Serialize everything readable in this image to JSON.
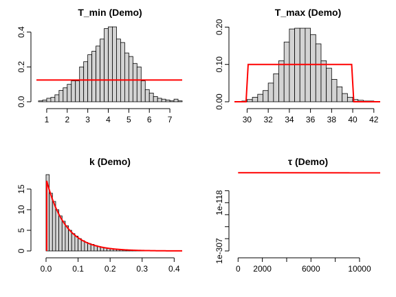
{
  "chart_data": [
    {
      "type": "bar",
      "subtype": "histogram",
      "title": "T_min (Demo)",
      "xlim": [
        0.5,
        7.6
      ],
      "ylim": [
        0,
        0.45
      ],
      "xticks": [
        1,
        2,
        3,
        4,
        5,
        6,
        7
      ],
      "yticks": [
        0.0,
        0.2,
        0.4
      ],
      "xtick_labels": [
        "1",
        "2",
        "3",
        "4",
        "5",
        "6",
        "7"
      ],
      "ytick_labels": [
        "0.0",
        "0.2",
        "0.4"
      ],
      "bin_width": 0.2,
      "bins_start": [
        0.6,
        0.8,
        1.0,
        1.2,
        1.4,
        1.6,
        1.8,
        2.0,
        2.2,
        2.4,
        2.6,
        2.8,
        3.0,
        3.2,
        3.4,
        3.6,
        3.8,
        4.0,
        4.2,
        4.4,
        4.6,
        4.8,
        5.0,
        5.2,
        5.4,
        5.6,
        5.8,
        6.0,
        6.2,
        6.4,
        6.6,
        6.8,
        7.0,
        7.2,
        7.4
      ],
      "density": [
        0.005,
        0.01,
        0.02,
        0.025,
        0.04,
        0.065,
        0.08,
        0.1,
        0.12,
        0.12,
        0.2,
        0.23,
        0.27,
        0.29,
        0.32,
        0.36,
        0.42,
        0.43,
        0.43,
        0.36,
        0.34,
        0.28,
        0.26,
        0.22,
        0.2,
        0.12,
        0.07,
        0.05,
        0.03,
        0.02,
        0.015,
        0.01,
        0.005,
        0.015,
        0.005
      ],
      "curve": {
        "kind": "flat",
        "x": [
          0.5,
          7.6
        ],
        "y": [
          0.125,
          0.125
        ]
      },
      "grid": false,
      "legend": "none"
    },
    {
      "type": "bar",
      "subtype": "histogram",
      "title": "T_max (Demo)",
      "xlim": [
        28.8,
        42.6
      ],
      "ylim": [
        0,
        0.21
      ],
      "xticks": [
        30,
        32,
        34,
        36,
        38,
        40,
        42
      ],
      "yticks": [
        0.0,
        0.1,
        0.2
      ],
      "xtick_labels": [
        "30",
        "32",
        "34",
        "36",
        "38",
        "40",
        "42"
      ],
      "ytick_labels": [
        "0.00",
        "0.10",
        "0.20"
      ],
      "bin_width": 0.5,
      "bins_start": [
        29.5,
        30.0,
        30.5,
        31.0,
        31.5,
        32.0,
        32.5,
        33.0,
        33.5,
        34.0,
        34.5,
        35.0,
        35.5,
        36.0,
        36.5,
        37.0,
        37.5,
        38.0,
        38.5,
        39.0,
        39.5,
        40.0,
        40.5,
        41.0,
        41.5
      ],
      "density": [
        0.002,
        0.006,
        0.012,
        0.02,
        0.03,
        0.05,
        0.075,
        0.11,
        0.16,
        0.195,
        0.197,
        0.197,
        0.197,
        0.18,
        0.155,
        0.11,
        0.09,
        0.06,
        0.04,
        0.022,
        0.012,
        0.006,
        0.004,
        0.002,
        0.002
      ],
      "curve": {
        "kind": "uniform",
        "x": [
          28.8,
          29.9,
          30.1,
          39.9,
          40.1,
          42.6
        ],
        "y": [
          0,
          0,
          0.1,
          0.1,
          0,
          0
        ]
      },
      "grid": false,
      "legend": "none"
    },
    {
      "type": "bar",
      "subtype": "histogram",
      "title": "k (Demo)",
      "xlim": [
        -0.03,
        0.425
      ],
      "ylim": [
        0,
        19
      ],
      "xticks": [
        0.0,
        0.1,
        0.2,
        0.3,
        0.4
      ],
      "yticks": [
        0,
        5,
        10,
        15
      ],
      "xtick_labels": [
        "0.0",
        "0.1",
        "0.2",
        "0.3",
        "0.4"
      ],
      "ytick_labels": [
        "0",
        "5",
        "10",
        "15"
      ],
      "bin_width": 0.01,
      "bins_start": [
        0.0,
        0.01,
        0.02,
        0.03,
        0.04,
        0.05,
        0.06,
        0.07,
        0.08,
        0.09,
        0.1,
        0.11,
        0.12,
        0.13,
        0.14,
        0.15,
        0.16,
        0.17,
        0.18,
        0.19,
        0.2,
        0.21,
        0.22,
        0.23,
        0.24,
        0.25,
        0.26,
        0.27,
        0.28,
        0.29,
        0.3
      ],
      "density": [
        18.5,
        14,
        12,
        10,
        8.5,
        7.2,
        6.1,
        5.0,
        4.2,
        3.6,
        3.0,
        2.5,
        2.1,
        1.8,
        1.6,
        1.3,
        1.1,
        0.9,
        0.7,
        0.6,
        0.5,
        0.4,
        0.35,
        0.3,
        0.25,
        0.2,
        0.15,
        0.12,
        0.1,
        0.08,
        0.05
      ],
      "curve": {
        "kind": "exponential",
        "rate": 17,
        "height": 17,
        "x_start": 0.002,
        "x_end": 0.425
      },
      "grid": false,
      "legend": "none"
    },
    {
      "type": "line",
      "title": "τ (Demo)",
      "xlim": [
        -300,
        11700
      ],
      "ylim_log10": [
        -307,
        0
      ],
      "xticks": [
        0,
        2000,
        6000,
        10000
      ],
      "xtick_labels": [
        "0",
        "2000",
        "6000",
        "10000"
      ],
      "xminor_ticks": [
        4000,
        8000
      ],
      "yticks_log10": [
        -118,
        -307
      ],
      "ytick_labels": [
        "1e-118",
        "1e-307"
      ],
      "yminor_ticks_log10": [
        -165,
        -212,
        -259,
        -71
      ],
      "line": {
        "x": [
          0,
          11700
        ],
        "y_log10": [
          -0.7,
          -0.9
        ]
      },
      "grid": false,
      "legend": "none"
    }
  ]
}
